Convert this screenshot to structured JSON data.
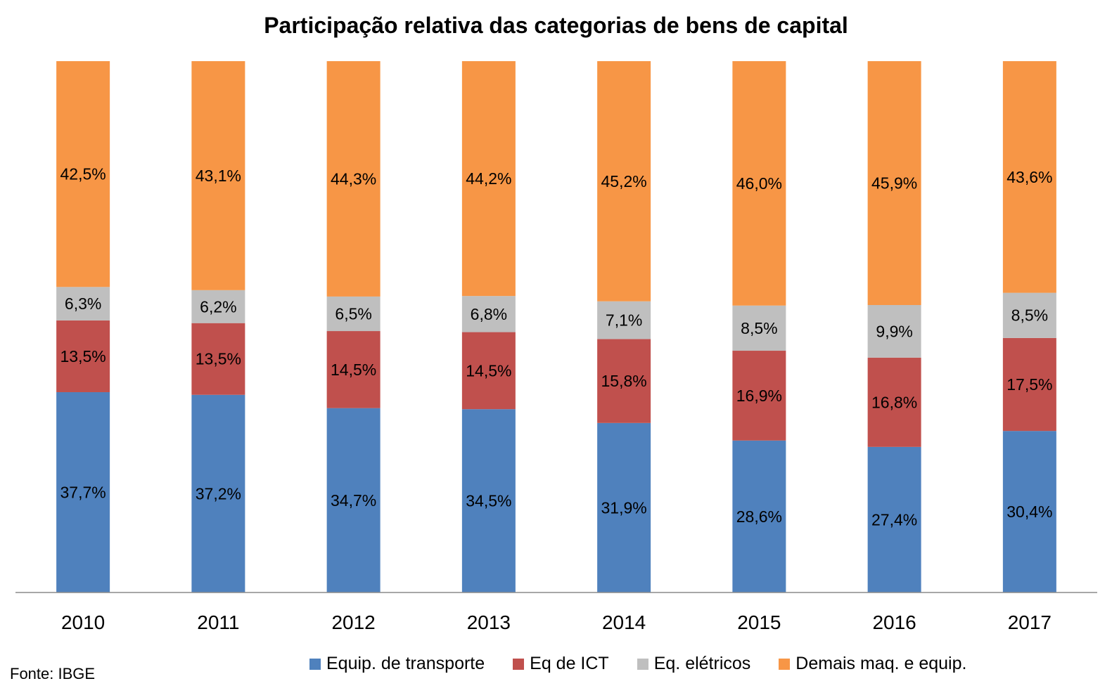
{
  "chart_data": {
    "type": "bar",
    "stacked": true,
    "title": "Participação relativa das categorias de bens de capital",
    "xlabel": "",
    "ylabel": "",
    "ylim": [
      0,
      100
    ],
    "grid": false,
    "legend_position": "bottom",
    "categories": [
      "2010",
      "2011",
      "2012",
      "2013",
      "2014",
      "2015",
      "2016",
      "2017"
    ],
    "series": [
      {
        "name": "Equip. de transporte",
        "color": "#4F81BD",
        "values": [
          37.7,
          37.2,
          34.7,
          34.5,
          31.9,
          28.6,
          27.4,
          30.4
        ],
        "labels": [
          "37,7%",
          "37,2%",
          "34,7%",
          "34,5%",
          "31,9%",
          "28,6%",
          "27,4%",
          "30,4%"
        ]
      },
      {
        "name": "Eq de ICT",
        "color": "#C0504D",
        "values": [
          13.5,
          13.5,
          14.5,
          14.5,
          15.8,
          16.9,
          16.8,
          17.5
        ],
        "labels": [
          "13,5%",
          "13,5%",
          "14,5%",
          "14,5%",
          "15,8%",
          "16,9%",
          "16,8%",
          "17,5%"
        ]
      },
      {
        "name": "Eq. elétricos",
        "color": "#BFBFBF",
        "values": [
          6.3,
          6.2,
          6.5,
          6.8,
          7.1,
          8.5,
          9.9,
          8.5
        ],
        "labels": [
          "6,3%",
          "6,2%",
          "6,5%",
          "6,8%",
          "7,1%",
          "8,5%",
          "9,9%",
          "8,5%"
        ]
      },
      {
        "name": "Demais maq. e equip.",
        "color": "#F79646",
        "values": [
          42.5,
          43.1,
          44.3,
          44.2,
          45.2,
          46.0,
          45.9,
          43.6
        ],
        "labels": [
          "42,5%",
          "43,1%",
          "44,3%",
          "44,2%",
          "45,2%",
          "46,0%",
          "45,9%",
          "43,6%"
        ]
      }
    ]
  },
  "source": "Fonte: IBGE"
}
